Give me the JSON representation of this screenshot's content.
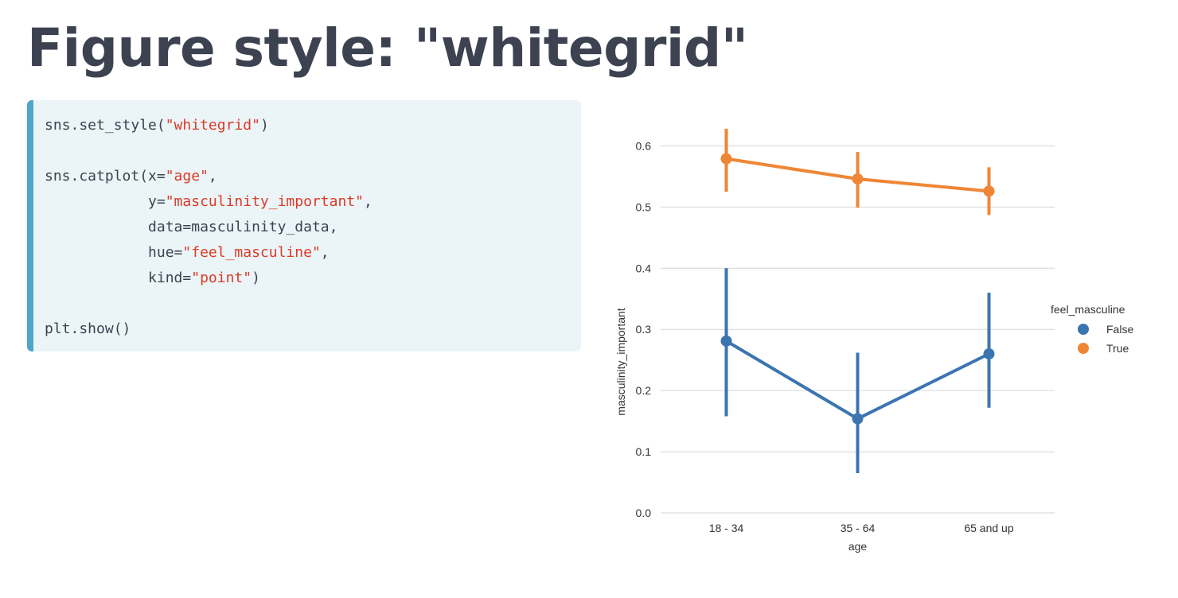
{
  "slide": {
    "title": "Figure style: \"whitegrid\""
  },
  "code": {
    "lines": [
      [
        {
          "t": "sns.set_style("
        },
        {
          "t": "\"whitegrid\"",
          "s": 1
        },
        {
          "t": ")"
        }
      ],
      [],
      [
        {
          "t": "sns.catplot(x="
        },
        {
          "t": "\"age\"",
          "s": 1
        },
        {
          "t": ","
        }
      ],
      [
        {
          "t": "            y="
        },
        {
          "t": "\"masculinity_important\"",
          "s": 1
        },
        {
          "t": ","
        }
      ],
      [
        {
          "t": "            data=masculinity_data,"
        }
      ],
      [
        {
          "t": "            hue="
        },
        {
          "t": "\"feel_masculine\"",
          "s": 1
        },
        {
          "t": ","
        }
      ],
      [
        {
          "t": "            kind="
        },
        {
          "t": "\"point\"",
          "s": 1
        },
        {
          "t": ")"
        }
      ],
      [],
      [
        {
          "t": "plt.show()"
        }
      ]
    ],
    "string_color": "#dc3a26"
  },
  "chart_data": {
    "type": "line",
    "categories": [
      "18 - 34",
      "35 - 64",
      "65 and up"
    ],
    "xlabel": "age",
    "ylabel": "masculinity_important",
    "ylim": [
      0.0,
      0.65
    ],
    "yticks": [
      "0.0",
      "0.1",
      "0.2",
      "0.3",
      "0.4",
      "0.5",
      "0.6"
    ],
    "grid": "horizontal",
    "legend": {
      "title": "feel_masculine",
      "placement": "right"
    },
    "series": [
      {
        "name": "False",
        "color": "#3a75b0",
        "values": [
          0.281,
          0.154,
          0.26
        ],
        "ci_low": [
          0.158,
          0.065,
          0.172
        ],
        "ci_high": [
          0.4,
          0.262,
          0.36
        ]
      },
      {
        "name": "True",
        "color": "#ef8636",
        "values": [
          0.579,
          0.546,
          0.526
        ],
        "ci_low": [
          0.525,
          0.499,
          0.487
        ],
        "ci_high": [
          0.628,
          0.59,
          0.565
        ]
      }
    ]
  }
}
